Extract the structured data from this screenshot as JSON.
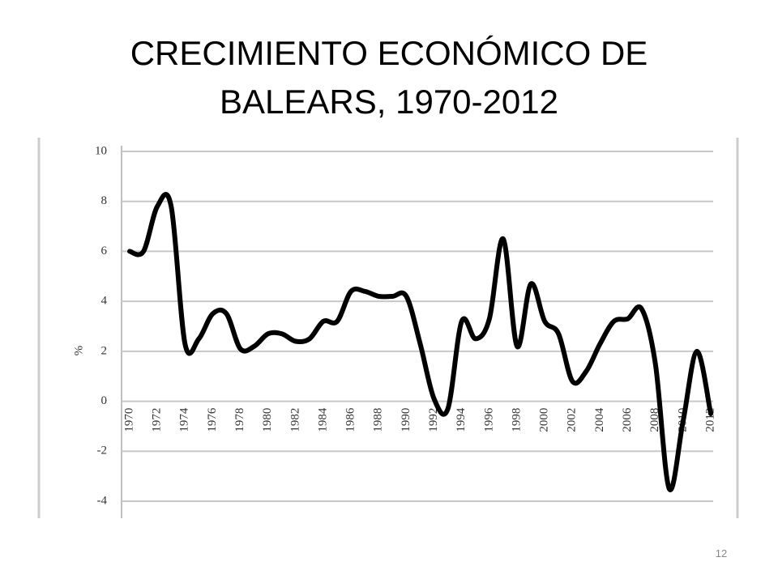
{
  "chart_data": {
    "type": "line",
    "title": "CRECIMIENTO ECONÓMICO DE BALEARS, 1970-2012",
    "ylabel": "%",
    "x": [
      1970,
      1971,
      1972,
      1973,
      1974,
      1975,
      1976,
      1977,
      1978,
      1979,
      1980,
      1981,
      1982,
      1983,
      1984,
      1985,
      1986,
      1987,
      1988,
      1989,
      1990,
      1991,
      1992,
      1993,
      1994,
      1995,
      1996,
      1997,
      1998,
      1999,
      2000,
      2001,
      2002,
      2003,
      2004,
      2005,
      2006,
      2007,
      2008,
      2009,
      2010,
      2011,
      2012
    ],
    "values": [
      6.0,
      6.0,
      7.8,
      7.8,
      2.3,
      2.5,
      3.5,
      3.5,
      2.1,
      2.2,
      2.7,
      2.7,
      2.4,
      2.5,
      3.2,
      3.2,
      4.4,
      4.4,
      4.2,
      4.2,
      4.2,
      2.3,
      0.1,
      -0.3,
      3.2,
      2.5,
      3.3,
      6.5,
      2.2,
      4.7,
      3.2,
      2.7,
      0.8,
      1.2,
      2.3,
      3.2,
      3.3,
      3.7,
      1.5,
      -3.5,
      -0.8,
      2.0,
      -0.5
    ],
    "color": "#000000",
    "xlim": [
      1970,
      2012
    ],
    "xticks": [
      1970,
      1972,
      1974,
      1976,
      1978,
      1980,
      1982,
      1984,
      1986,
      1988,
      1990,
      1992,
      1994,
      1996,
      1998,
      2000,
      2002,
      2004,
      2006,
      2008,
      2010,
      2012
    ],
    "ylim": [
      -4,
      10
    ],
    "yticks": [
      -4,
      -2,
      0,
      2,
      4,
      6,
      8,
      10
    ],
    "grid": true
  },
  "page_number": "12"
}
